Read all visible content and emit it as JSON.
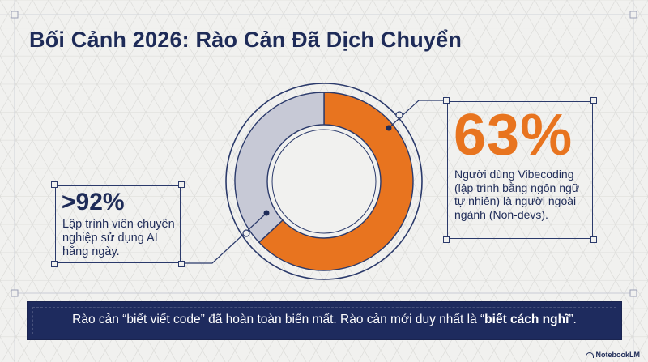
{
  "title": "Bối Cảnh 2026: Rào Cản Đã Dịch Chuyển",
  "chart_data": {
    "type": "pie",
    "series": [
      {
        "name": "",
        "values": [
          63,
          37
        ]
      }
    ],
    "colors": [
      "#e8741f",
      "#c7c9d6"
    ],
    "title": ""
  },
  "left_stat": {
    "value": ">92%",
    "description": "Lập trình viên chuyên nghiệp sử dụng AI hằng ngày."
  },
  "right_stat": {
    "value": "63%",
    "description": "Người dùng Vibecoding (lập trình bằng ngôn ngữ tự nhiên) là người ngoài ngành (Non-devs)."
  },
  "banner": {
    "text_before": "Rào cản “biết viết code” đã hoàn toàn biến mất. Rào cản mới duy nhất là “",
    "text_bold": "biết cách nghĩ",
    "text_after": "”."
  },
  "logo": "NotebookLM",
  "colors": {
    "navy": "#1e2b58",
    "orange": "#e8741f",
    "grey_segment": "#c7c9d6",
    "background": "#f1f1ef"
  }
}
